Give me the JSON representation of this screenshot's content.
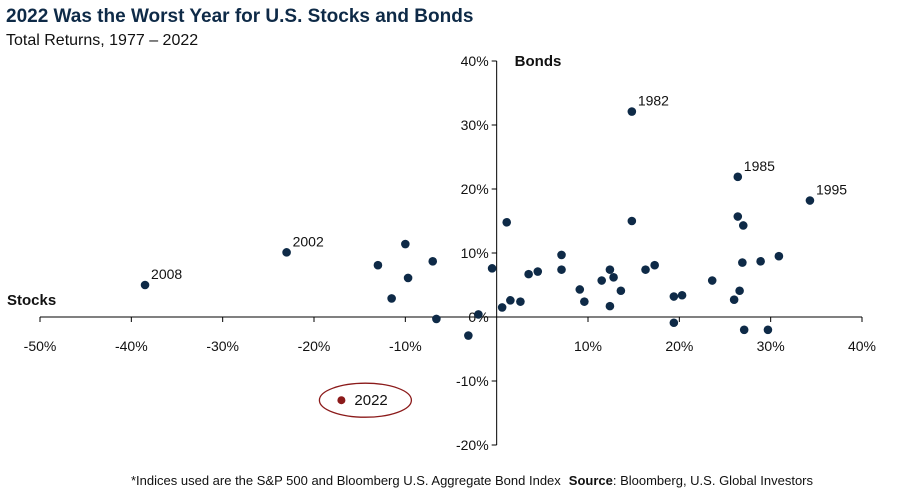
{
  "header": {
    "title": "2022 Was the Worst Year for U.S. Stocks and Bonds",
    "subtitle": "Total Returns, 1977 – 2022"
  },
  "footnote": {
    "note": "*Indices used are the S&P 500 and Bloomberg U.S. Aggregate Bond Index",
    "source_label": "Source",
    "source_text": ": Bloomberg, U.S. Global Investors"
  },
  "colors": {
    "point": "#0e2a47",
    "highlight": "#8b1a1a",
    "axis": "#000000",
    "title": "#0e2a47"
  },
  "chart_data": {
    "type": "scatter",
    "title": "2022 Was the Worst Year for U.S. Stocks and Bonds",
    "subtitle": "Total Returns, 1977 – 2022",
    "xlabel": "Stocks",
    "ylabel": "Bonds",
    "xlim": [
      -50,
      40
    ],
    "ylim": [
      -20,
      40
    ],
    "x_ticks": [
      "-50%",
      "-40%",
      "-30%",
      "-20%",
      "-10%",
      "10%",
      "20%",
      "30%",
      "40%"
    ],
    "x_tick_values": [
      -50,
      -40,
      -30,
      -20,
      -10,
      10,
      20,
      30,
      40
    ],
    "y_ticks": [
      "40%",
      "30%",
      "20%",
      "10%",
      "0%",
      "-10%",
      "-20%"
    ],
    "y_tick_values": [
      40,
      30,
      20,
      10,
      0,
      -10,
      -20
    ],
    "grid": false,
    "points": [
      {
        "x": -38.5,
        "y": 5.0
      },
      {
        "x": -23.0,
        "y": 10.1
      },
      {
        "x": -13.0,
        "y": 8.1
      },
      {
        "x": -11.5,
        "y": 2.9
      },
      {
        "x": -10.0,
        "y": 11.4
      },
      {
        "x": -9.7,
        "y": 6.1
      },
      {
        "x": -7.0,
        "y": 8.7
      },
      {
        "x": -6.6,
        "y": -0.3
      },
      {
        "x": -3.1,
        "y": -2.9
      },
      {
        "x": -2.0,
        "y": 0.4
      },
      {
        "x": -0.5,
        "y": 7.6
      },
      {
        "x": 0.6,
        "y": 1.5
      },
      {
        "x": 1.1,
        "y": 14.8
      },
      {
        "x": 1.5,
        "y": 2.6
      },
      {
        "x": 2.6,
        "y": 2.4
      },
      {
        "x": 3.5,
        "y": 6.7
      },
      {
        "x": 4.5,
        "y": 7.1
      },
      {
        "x": 7.1,
        "y": 9.7
      },
      {
        "x": 7.1,
        "y": 7.4
      },
      {
        "x": 9.1,
        "y": 4.3
      },
      {
        "x": 9.6,
        "y": 2.4
      },
      {
        "x": 11.5,
        "y": 5.7
      },
      {
        "x": 12.4,
        "y": 7.4
      },
      {
        "x": 12.4,
        "y": 1.7
      },
      {
        "x": 12.8,
        "y": 6.2
      },
      {
        "x": 13.6,
        "y": 4.1
      },
      {
        "x": 14.8,
        "y": 32.1
      },
      {
        "x": 14.8,
        "y": 15.0
      },
      {
        "x": 16.3,
        "y": 7.4
      },
      {
        "x": 17.3,
        "y": 8.1
      },
      {
        "x": 19.4,
        "y": 3.2
      },
      {
        "x": 19.4,
        "y": -0.9
      },
      {
        "x": 20.3,
        "y": 3.4
      },
      {
        "x": 23.6,
        "y": 5.7
      },
      {
        "x": 26.0,
        "y": 2.7
      },
      {
        "x": 26.4,
        "y": 15.7
      },
      {
        "x": 26.4,
        "y": 21.9
      },
      {
        "x": 26.6,
        "y": 4.1
      },
      {
        "x": 26.9,
        "y": 8.5
      },
      {
        "x": 27.0,
        "y": 14.3
      },
      {
        "x": 27.1,
        "y": -2.0
      },
      {
        "x": 28.9,
        "y": 8.7
      },
      {
        "x": 29.7,
        "y": -2.0
      },
      {
        "x": 30.9,
        "y": 9.5
      },
      {
        "x": 34.3,
        "y": 18.2
      }
    ],
    "labeled_points": [
      {
        "label": "2008",
        "x": -38.5,
        "y": 5.0
      },
      {
        "label": "2002",
        "x": -23.0,
        "y": 10.1
      },
      {
        "label": "1982",
        "x": 14.8,
        "y": 32.1
      },
      {
        "label": "1985",
        "x": 26.4,
        "y": 21.9
      },
      {
        "label": "1995",
        "x": 34.3,
        "y": 18.2
      }
    ],
    "highlight": {
      "label": "2022",
      "x": -17.0,
      "y": -13.0
    }
  }
}
